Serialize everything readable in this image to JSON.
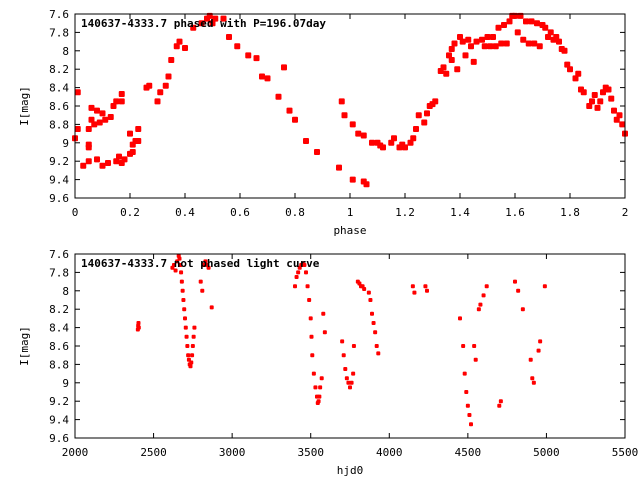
{
  "chart_data": [
    {
      "type": "scatter",
      "title": "140637-4333.7 phased with P=196.07day",
      "xlabel": "phase",
      "ylabel": "I[mag]",
      "xlim": [
        0,
        2
      ],
      "ylim": [
        9.6,
        7.6
      ],
      "y_inverted": true,
      "x_ticks": [
        "0",
        "0.2",
        "0.4",
        "0.6",
        "0.8",
        "1",
        "1.2",
        "1.4",
        "1.6",
        "1.8",
        "2"
      ],
      "x_tick_values": [
        0,
        0.2,
        0.4,
        0.6,
        0.8,
        1.0,
        1.2,
        1.4,
        1.6,
        1.8,
        2.0
      ],
      "y_ticks": [
        "7.6",
        "7.8",
        "8",
        "8.2",
        "8.4",
        "8.6",
        "8.8",
        "9",
        "9.2",
        "9.4",
        "9.6"
      ],
      "y_tick_values": [
        7.6,
        7.8,
        8.0,
        8.2,
        8.4,
        8.6,
        8.8,
        9.0,
        9.2,
        9.4,
        9.6
      ],
      "grid": false,
      "marker_color": "#ff0000",
      "points": [
        [
          0.0,
          8.95
        ],
        [
          0.01,
          8.85
        ],
        [
          0.01,
          8.45
        ],
        [
          0.03,
          9.25
        ],
        [
          0.05,
          8.85
        ],
        [
          0.05,
          9.2
        ],
        [
          0.05,
          9.05
        ],
        [
          0.05,
          9.02
        ],
        [
          0.06,
          8.75
        ],
        [
          0.06,
          8.62
        ],
        [
          0.07,
          8.8
        ],
        [
          0.08,
          9.18
        ],
        [
          0.08,
          8.65
        ],
        [
          0.09,
          8.78
        ],
        [
          0.1,
          8.68
        ],
        [
          0.1,
          9.25
        ],
        [
          0.11,
          8.75
        ],
        [
          0.12,
          9.22
        ],
        [
          0.13,
          8.72
        ],
        [
          0.14,
          8.6
        ],
        [
          0.15,
          9.2
        ],
        [
          0.15,
          8.55
        ],
        [
          0.16,
          9.15
        ],
        [
          0.17,
          9.22
        ],
        [
          0.17,
          8.55
        ],
        [
          0.17,
          8.47
        ],
        [
          0.18,
          9.18
        ],
        [
          0.2,
          9.12
        ],
        [
          0.2,
          8.9
        ],
        [
          0.21,
          9.1
        ],
        [
          0.21,
          9.02
        ],
        [
          0.22,
          8.98
        ],
        [
          0.23,
          8.98
        ],
        [
          0.23,
          8.85
        ],
        [
          0.26,
          8.4
        ],
        [
          0.27,
          8.38
        ],
        [
          0.3,
          8.55
        ],
        [
          0.31,
          8.45
        ],
        [
          0.33,
          8.38
        ],
        [
          0.34,
          8.28
        ],
        [
          0.35,
          8.1
        ],
        [
          0.37,
          7.95
        ],
        [
          0.38,
          7.9
        ],
        [
          0.4,
          7.97
        ],
        [
          0.43,
          7.75
        ],
        [
          0.46,
          7.7
        ],
        [
          0.48,
          7.65
        ],
        [
          0.49,
          7.62
        ],
        [
          0.5,
          7.7
        ],
        [
          0.51,
          7.65
        ],
        [
          0.54,
          7.65
        ],
        [
          0.56,
          7.85
        ],
        [
          0.59,
          7.95
        ],
        [
          0.63,
          8.05
        ],
        [
          0.66,
          8.08
        ],
        [
          0.68,
          8.28
        ],
        [
          0.7,
          8.3
        ],
        [
          0.74,
          8.5
        ],
        [
          0.76,
          8.18
        ],
        [
          0.78,
          8.65
        ],
        [
          0.8,
          8.75
        ],
        [
          0.84,
          8.98
        ],
        [
          0.88,
          9.1
        ],
        [
          0.96,
          9.27
        ],
        [
          0.97,
          8.55
        ],
        [
          0.98,
          8.7
        ],
        [
          1.01,
          8.8
        ],
        [
          1.01,
          9.4
        ],
        [
          1.03,
          8.9
        ],
        [
          1.05,
          9.42
        ],
        [
          1.05,
          8.92
        ],
        [
          1.06,
          9.45
        ],
        [
          1.08,
          9.0
        ],
        [
          1.1,
          9.0
        ],
        [
          1.11,
          9.03
        ],
        [
          1.12,
          9.05
        ],
        [
          1.15,
          9.0
        ],
        [
          1.16,
          8.95
        ],
        [
          1.18,
          9.05
        ],
        [
          1.19,
          9.02
        ],
        [
          1.2,
          9.05
        ],
        [
          1.22,
          9.0
        ],
        [
          1.23,
          8.95
        ],
        [
          1.24,
          8.85
        ],
        [
          1.25,
          8.7
        ],
        [
          1.27,
          8.78
        ],
        [
          1.28,
          8.68
        ],
        [
          1.29,
          8.6
        ],
        [
          1.3,
          8.58
        ],
        [
          1.31,
          8.55
        ],
        [
          1.33,
          8.22
        ],
        [
          1.34,
          8.18
        ],
        [
          1.35,
          8.25
        ],
        [
          1.36,
          8.05
        ],
        [
          1.37,
          8.1
        ],
        [
          1.37,
          7.98
        ],
        [
          1.38,
          7.92
        ],
        [
          1.39,
          8.2
        ],
        [
          1.4,
          7.85
        ],
        [
          1.41,
          7.9
        ],
        [
          1.42,
          8.05
        ],
        [
          1.43,
          7.88
        ],
        [
          1.44,
          7.95
        ],
        [
          1.45,
          8.12
        ],
        [
          1.46,
          7.9
        ],
        [
          1.48,
          7.88
        ],
        [
          1.49,
          7.95
        ],
        [
          1.5,
          7.85
        ],
        [
          1.51,
          7.95
        ],
        [
          1.52,
          7.85
        ],
        [
          1.53,
          7.95
        ],
        [
          1.54,
          7.75
        ],
        [
          1.55,
          7.92
        ],
        [
          1.56,
          7.72
        ],
        [
          1.57,
          7.92
        ],
        [
          1.58,
          7.68
        ],
        [
          1.59,
          7.62
        ],
        [
          1.6,
          7.62
        ],
        [
          1.61,
          7.8
        ],
        [
          1.62,
          7.62
        ],
        [
          1.63,
          7.88
        ],
        [
          1.64,
          7.68
        ],
        [
          1.65,
          7.92
        ],
        [
          1.66,
          7.68
        ],
        [
          1.67,
          7.92
        ],
        [
          1.68,
          7.7
        ],
        [
          1.69,
          7.95
        ],
        [
          1.7,
          7.72
        ],
        [
          1.71,
          7.75
        ],
        [
          1.72,
          7.85
        ],
        [
          1.73,
          7.8
        ],
        [
          1.74,
          7.88
        ],
        [
          1.75,
          7.85
        ],
        [
          1.76,
          7.9
        ],
        [
          1.77,
          7.98
        ],
        [
          1.78,
          8.0
        ],
        [
          1.79,
          8.15
        ],
        [
          1.8,
          8.2
        ],
        [
          1.82,
          8.3
        ],
        [
          1.83,
          8.25
        ],
        [
          1.84,
          8.42
        ],
        [
          1.85,
          8.45
        ],
        [
          1.87,
          8.6
        ],
        [
          1.88,
          8.55
        ],
        [
          1.89,
          8.48
        ],
        [
          1.9,
          8.62
        ],
        [
          1.91,
          8.55
        ],
        [
          1.92,
          8.45
        ],
        [
          1.93,
          8.4
        ],
        [
          1.94,
          8.42
        ],
        [
          1.95,
          8.52
        ],
        [
          1.96,
          8.65
        ],
        [
          1.97,
          8.75
        ],
        [
          1.98,
          8.7
        ],
        [
          1.99,
          8.8
        ],
        [
          2.0,
          8.9
        ]
      ]
    },
    {
      "type": "scatter",
      "title": "140637-4333.7 not phased light curve",
      "xlabel": "hjd0",
      "ylabel": "I[mag]",
      "xlim": [
        2000,
        5500
      ],
      "ylim": [
        9.6,
        7.6
      ],
      "y_inverted": true,
      "x_ticks": [
        "2000",
        "2500",
        "3000",
        "3500",
        "4000",
        "4500",
        "5000",
        "5500"
      ],
      "x_tick_values": [
        2000,
        2500,
        3000,
        3500,
        4000,
        4500,
        5000,
        5500
      ],
      "y_ticks": [
        "7.6",
        "7.8",
        "8",
        "8.2",
        "8.4",
        "8.6",
        "8.8",
        "9",
        "9.2",
        "9.4",
        "9.6"
      ],
      "y_tick_values": [
        7.6,
        7.8,
        8.0,
        8.2,
        8.4,
        8.6,
        8.8,
        9.0,
        9.2,
        9.4,
        9.6
      ],
      "grid": false,
      "marker_color": "#ff0000",
      "points": [
        [
          2400,
          8.42
        ],
        [
          2402,
          8.38
        ],
        [
          2404,
          8.35
        ],
        [
          2406,
          8.4
        ],
        [
          2620,
          7.75
        ],
        [
          2630,
          7.72
        ],
        [
          2640,
          7.78
        ],
        [
          2650,
          7.68
        ],
        [
          2660,
          7.62
        ],
        [
          2665,
          7.65
        ],
        [
          2670,
          7.72
        ],
        [
          2675,
          7.8
        ],
        [
          2680,
          7.9
        ],
        [
          2685,
          8.0
        ],
        [
          2690,
          8.1
        ],
        [
          2695,
          8.2
        ],
        [
          2700,
          8.3
        ],
        [
          2705,
          8.4
        ],
        [
          2710,
          8.5
        ],
        [
          2715,
          8.6
        ],
        [
          2720,
          8.7
        ],
        [
          2725,
          8.75
        ],
        [
          2730,
          8.8
        ],
        [
          2735,
          8.82
        ],
        [
          2740,
          8.78
        ],
        [
          2745,
          8.7
        ],
        [
          2750,
          8.6
        ],
        [
          2755,
          8.5
        ],
        [
          2760,
          8.4
        ],
        [
          2800,
          7.9
        ],
        [
          2810,
          8.0
        ],
        [
          2820,
          7.72
        ],
        [
          2830,
          7.68
        ],
        [
          2840,
          7.72
        ],
        [
          2850,
          7.75
        ],
        [
          2870,
          8.18
        ],
        [
          3400,
          7.95
        ],
        [
          3410,
          7.85
        ],
        [
          3420,
          7.8
        ],
        [
          3430,
          7.75
        ],
        [
          3440,
          7.72
        ],
        [
          3450,
          7.7
        ],
        [
          3460,
          7.72
        ],
        [
          3470,
          7.8
        ],
        [
          3480,
          7.95
        ],
        [
          3490,
          8.1
        ],
        [
          3500,
          8.3
        ],
        [
          3505,
          8.5
        ],
        [
          3510,
          8.7
        ],
        [
          3520,
          8.9
        ],
        [
          3530,
          9.05
        ],
        [
          3540,
          9.15
        ],
        [
          3545,
          9.22
        ],
        [
          3550,
          9.2
        ],
        [
          3555,
          9.15
        ],
        [
          3560,
          9.05
        ],
        [
          3570,
          8.95
        ],
        [
          3580,
          8.25
        ],
        [
          3590,
          8.45
        ],
        [
          3700,
          8.55
        ],
        [
          3710,
          8.7
        ],
        [
          3720,
          8.85
        ],
        [
          3730,
          8.95
        ],
        [
          3740,
          9.0
        ],
        [
          3750,
          9.05
        ],
        [
          3760,
          9.0
        ],
        [
          3770,
          8.9
        ],
        [
          3775,
          8.6
        ],
        [
          3800,
          7.9
        ],
        [
          3810,
          7.92
        ],
        [
          3820,
          7.95
        ],
        [
          3830,
          7.95
        ],
        [
          3840,
          7.98
        ],
        [
          3870,
          8.02
        ],
        [
          3880,
          8.1
        ],
        [
          3890,
          8.25
        ],
        [
          3900,
          8.35
        ],
        [
          3910,
          8.45
        ],
        [
          3920,
          8.6
        ],
        [
          3930,
          8.68
        ],
        [
          4150,
          7.95
        ],
        [
          4160,
          8.02
        ],
        [
          4230,
          7.95
        ],
        [
          4240,
          8.0
        ],
        [
          4450,
          8.3
        ],
        [
          4470,
          8.6
        ],
        [
          4480,
          8.9
        ],
        [
          4490,
          9.1
        ],
        [
          4500,
          9.25
        ],
        [
          4510,
          9.35
        ],
        [
          4520,
          9.45
        ],
        [
          4540,
          8.6
        ],
        [
          4550,
          8.75
        ],
        [
          4570,
          8.2
        ],
        [
          4580,
          8.15
        ],
        [
          4600,
          8.05
        ],
        [
          4620,
          7.95
        ],
        [
          4700,
          9.25
        ],
        [
          4710,
          9.2
        ],
        [
          4800,
          7.9
        ],
        [
          4820,
          8.0
        ],
        [
          4850,
          8.2
        ],
        [
          4900,
          8.75
        ],
        [
          4910,
          8.95
        ],
        [
          4920,
          9.0
        ],
        [
          4950,
          8.65
        ],
        [
          4960,
          8.55
        ],
        [
          4990,
          7.95
        ]
      ]
    }
  ]
}
